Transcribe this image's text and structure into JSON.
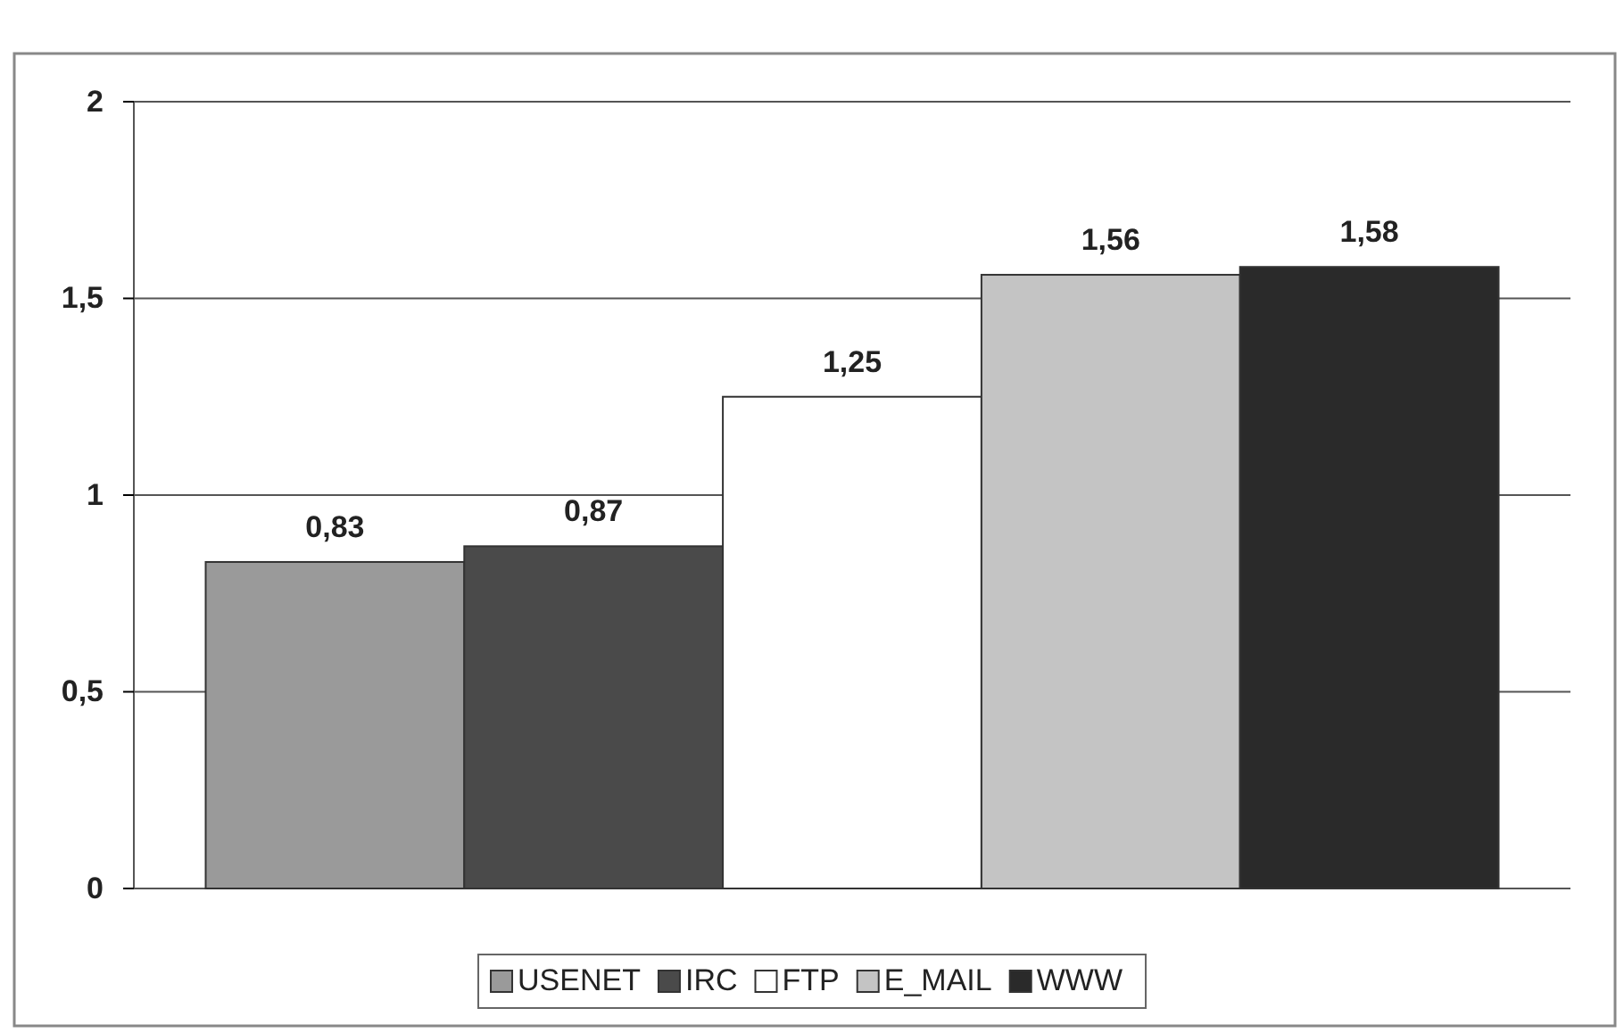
{
  "chart_data": {
    "type": "bar",
    "categories": [
      null
    ],
    "series": [
      {
        "name": "USENET",
        "color": "#9a9a9a",
        "values": [
          0.83
        ],
        "value_labels": [
          "0,83"
        ]
      },
      {
        "name": "IRC",
        "color": "#4a4a4a",
        "values": [
          0.87
        ],
        "value_labels": [
          "0,87"
        ]
      },
      {
        "name": "FTP",
        "color": "#ffffff",
        "values": [
          1.25
        ],
        "value_labels": [
          "1,25"
        ]
      },
      {
        "name": "E_MAIL",
        "color": "#c4c4c4",
        "values": [
          1.56
        ],
        "value_labels": [
          "1,56"
        ]
      },
      {
        "name": "WWW",
        "color": "#2a2a2a",
        "values": [
          1.58
        ],
        "value_labels": [
          "1,58"
        ]
      }
    ],
    "ylim": [
      0,
      2
    ],
    "yticks": [
      0,
      {
        "value": 0.5,
        "label": "0,5"
      },
      1,
      {
        "value": 1.5,
        "label": "1,5"
      },
      2
    ],
    "grid": "y",
    "legend": "bottom"
  }
}
